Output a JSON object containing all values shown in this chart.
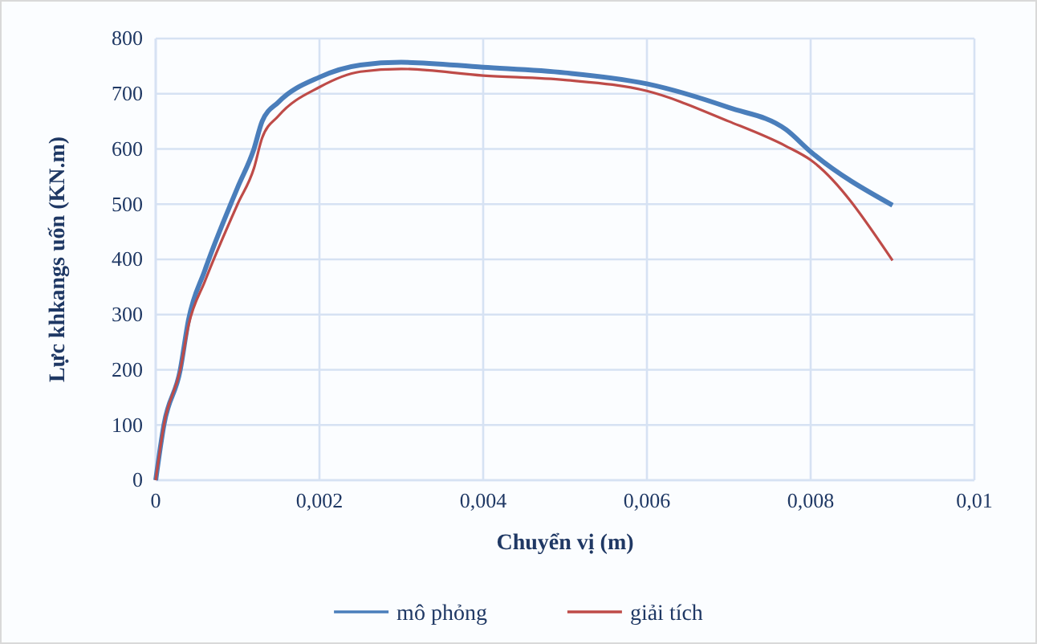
{
  "chart_data": {
    "type": "line",
    "xlabel": "Chuyển vị (m)",
    "ylabel": "Lực khkangs uốn (KN.m)",
    "xlim": [
      0,
      0.01
    ],
    "xticks": [
      0,
      {
        "value": 0.002,
        "label": "0,002"
      },
      {
        "value": 0.004,
        "label": "0,004"
      },
      {
        "value": 0.006,
        "label": "0,006"
      },
      {
        "value": 0.008,
        "label": "0,008"
      },
      {
        "value": 0.01,
        "label": "0,01"
      }
    ],
    "ylim": [
      0,
      800
    ],
    "yticks": [
      0,
      100,
      200,
      300,
      400,
      500,
      600,
      700,
      800
    ],
    "grid": true,
    "legend": "bottom",
    "marker": "none",
    "line_style": "solid",
    "series": [
      {
        "name": "mô phỏng",
        "color": "#4a7ebb",
        "x": [
          0,
          0.0001,
          0.0003,
          0.0004,
          0.0006,
          0.001,
          0.0012,
          0.0013,
          0.0015,
          0.002,
          0.0025,
          0.003,
          0.004,
          0.005,
          0.006,
          0.007,
          0.0077,
          0.008,
          0.009
        ],
        "values": [
          0,
          100,
          200,
          290,
          380,
          530,
          600,
          650,
          685,
          730,
          752,
          757,
          748,
          738,
          718,
          675,
          635,
          595,
          498
        ]
      },
      {
        "name": "giải tích",
        "color": "#be4b48",
        "x": [
          0,
          0.0001,
          0.0003,
          0.0004,
          0.0006,
          0.001,
          0.0012,
          0.0013,
          0.0015,
          0.002,
          0.0025,
          0.003,
          0.004,
          0.005,
          0.006,
          0.007,
          0.0077,
          0.008,
          0.009
        ],
        "values": [
          0,
          100,
          200,
          280,
          360,
          500,
          565,
          620,
          660,
          712,
          740,
          745,
          733,
          725,
          705,
          650,
          605,
          580,
          398
        ]
      }
    ]
  }
}
